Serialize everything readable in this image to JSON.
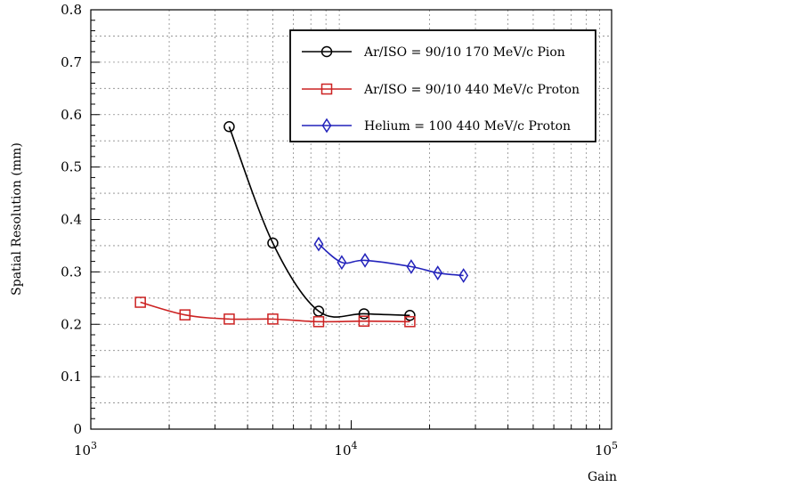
{
  "chart_data": {
    "type": "line",
    "xlabel": "Gain",
    "ylabel": "Spatial Resolution (mm)",
    "x_scale": "log",
    "xlim": [
      1000,
      100000
    ],
    "ylim": [
      0,
      0.8
    ],
    "grid": true,
    "legend_position": "top-right",
    "x_tick_labels": [
      {
        "value": 1000,
        "base": "10",
        "exp": "3"
      },
      {
        "value": 10000,
        "base": "10",
        "exp": "4"
      },
      {
        "value": 100000,
        "base": "10",
        "exp": "5"
      }
    ],
    "y_ticks": [
      {
        "value": 0,
        "label": "0"
      },
      {
        "value": 0.1,
        "label": "0.1"
      },
      {
        "value": 0.2,
        "label": "0.2"
      },
      {
        "value": 0.3,
        "label": "0.3"
      },
      {
        "value": 0.4,
        "label": "0.4"
      },
      {
        "value": 0.5,
        "label": "0.5"
      },
      {
        "value": 0.6,
        "label": "0.6"
      },
      {
        "value": 0.7,
        "label": "0.7"
      },
      {
        "value": 0.8,
        "label": "0.8"
      }
    ],
    "series": [
      {
        "name": "Ar/ISO = 90/10 170 MeV/c Pion",
        "color": "#000000",
        "marker": "circle",
        "x": [
          3400,
          5000,
          7500,
          11200,
          16800
        ],
        "y": [
          0.577,
          0.355,
          0.225,
          0.22,
          0.217
        ]
      },
      {
        "name": "Ar/ISO = 90/10 440 MeV/c Proton",
        "color": "#cc2222",
        "marker": "square",
        "x": [
          1550,
          2300,
          3400,
          5000,
          7500,
          11200,
          16800
        ],
        "y": [
          0.242,
          0.218,
          0.21,
          0.21,
          0.205,
          0.206,
          0.205
        ]
      },
      {
        "name": "Helium = 100 440 MeV/c Proton",
        "color": "#2222bb",
        "marker": "diamond",
        "x": [
          7500,
          9200,
          11300,
          17000,
          21500,
          27000
        ],
        "y": [
          0.353,
          0.318,
          0.322,
          0.31,
          0.298,
          0.293
        ]
      }
    ]
  }
}
